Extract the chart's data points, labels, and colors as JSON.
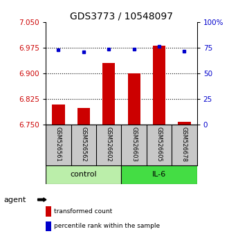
{
  "title": "GDS3773 / 10548097",
  "samples": [
    "GSM526561",
    "GSM526562",
    "GSM526602",
    "GSM526603",
    "GSM526605",
    "GSM526678"
  ],
  "red_values": [
    6.808,
    6.798,
    6.93,
    6.9,
    6.98,
    6.758
  ],
  "blue_values": [
    6.968,
    6.963,
    6.97,
    6.97,
    6.978,
    6.965
  ],
  "y_min": 6.75,
  "y_max": 7.05,
  "y_ticks_left": [
    6.75,
    6.825,
    6.9,
    6.975,
    7.05
  ],
  "y_ticks_right": [
    0,
    25,
    50,
    75,
    100
  ],
  "y_ticks_right_labels": [
    "0",
    "25",
    "50",
    "75",
    "100%"
  ],
  "dotted_lines": [
    6.975,
    6.9,
    6.825
  ],
  "group_control_label": "control",
  "group_il6_label": "IL-6",
  "group_control_color": "#BBEEAA",
  "group_il6_color": "#44DD44",
  "bar_color": "#CC0000",
  "dot_color": "#0000CC",
  "bar_width": 0.5,
  "agent_label": "agent",
  "legend_red": "transformed count",
  "legend_blue": "percentile rank within the sample",
  "sample_bg_color": "#C8C8C8",
  "title_fontsize": 10,
  "tick_fontsize": 7.5,
  "sample_fontsize": 6,
  "legend_fontsize": 6.5,
  "group_fontsize": 8
}
